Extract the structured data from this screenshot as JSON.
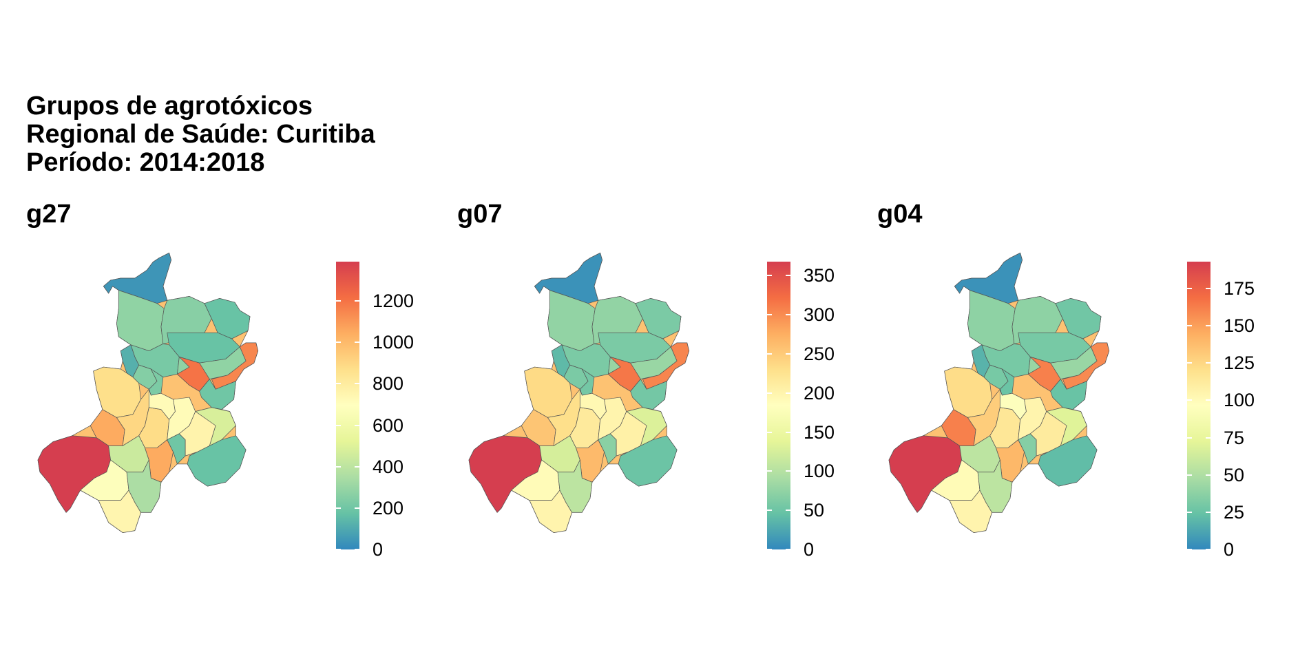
{
  "title": {
    "line1": "Grupos de agrotóxicos",
    "line2": "Regional de Saúde: Curitiba",
    "line3": "Período: 2014:2018"
  },
  "colors": {
    "low": "#3288bd",
    "mid": "#ffffbf",
    "high": "#d53e4f",
    "palette": [
      "#3288bd",
      "#66c2a5",
      "#abdda4",
      "#e6f598",
      "#ffffbf",
      "#fee08b",
      "#fdae61",
      "#f46d43",
      "#d53e4f"
    ],
    "border": "#555555"
  },
  "regions": [
    "r01",
    "r02",
    "r03",
    "r04",
    "r05",
    "r06",
    "r07",
    "r08",
    "r09",
    "r10",
    "r11",
    "r12",
    "r13",
    "r14",
    "r15",
    "r16",
    "r17",
    "r18",
    "r19",
    "r20",
    "r21",
    "r22",
    "r23",
    "r24",
    "r25",
    "r26",
    "r27",
    "r28",
    "r29"
  ],
  "panels": [
    {
      "title": "g27",
      "scale_max": 1390,
      "ticks": [
        0,
        200,
        400,
        600,
        800,
        1000,
        1200
      ],
      "tick_labels": [
        "0",
        "200",
        "400",
        "600",
        "800",
        "1000",
        "1200"
      ],
      "values": [
        40,
        280,
        260,
        180,
        180,
        220,
        280,
        120,
        250,
        230,
        870,
        1050,
        900,
        1390,
        880,
        720,
        720,
        440,
        1050,
        200,
        760,
        680,
        750,
        350,
        480,
        1200,
        1150,
        200,
        180
      ]
    },
    {
      "title": "g07",
      "scale_max": 368,
      "ticks": [
        0,
        50,
        100,
        150,
        200,
        250,
        300,
        350
      ],
      "tick_labels": [
        "0",
        "50",
        "100",
        "150",
        "200",
        "250",
        "300",
        "350"
      ],
      "values": [
        8,
        75,
        75,
        60,
        60,
        60,
        80,
        40,
        60,
        55,
        235,
        255,
        230,
        368,
        215,
        195,
        200,
        125,
        265,
        70,
        205,
        190,
        200,
        105,
        130,
        315,
        305,
        55,
        50
      ]
    },
    {
      "title": "g04",
      "scale_max": 193,
      "ticks": [
        0,
        25,
        50,
        75,
        100,
        125,
        150,
        175
      ],
      "tick_labels": [
        "0",
        "25",
        "50",
        "75",
        "100",
        "125",
        "150",
        "175"
      ],
      "values": [
        4,
        38,
        38,
        28,
        30,
        30,
        42,
        18,
        30,
        26,
        122,
        162,
        130,
        193,
        115,
        95,
        105,
        55,
        140,
        35,
        112,
        100,
        105,
        55,
        70,
        162,
        158,
        25,
        22
      ]
    }
  ]
}
